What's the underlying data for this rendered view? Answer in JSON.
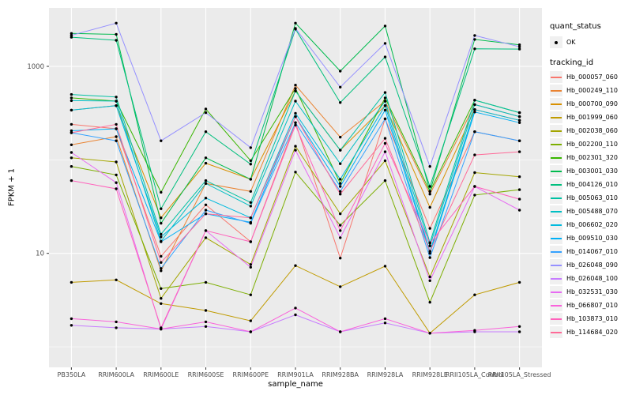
{
  "chart_data": {
    "type": "line",
    "title": "",
    "xlabel": "sample_name",
    "ylabel": "FPKM + 1",
    "y_scale": "log10",
    "y_ticks": [
      10,
      1000
    ],
    "y_minor_ticks": [
      1,
      100
    ],
    "ylim": [
      0.6,
      4200
    ],
    "grid": "on",
    "panel_bg": "#EBEBEB",
    "grid_color": "#FFFFFF",
    "point_color": "#000000",
    "tick_label_color": "#4D4D4D",
    "legend_position": "right",
    "x_categories": [
      "PB350LA",
      "RRIM600LA",
      "RRIM600LE",
      "RRIM600SE",
      "RRIM600PE",
      "RRIM901LA",
      "RRIM928BA",
      "RRIM928LA",
      "RRIM928LE",
      "RRII105LA_Control",
      "RRII105LA_Stressed"
    ],
    "legend": {
      "quant_status": {
        "title": "quant_status",
        "items": [
          {
            "label": "OK",
            "symbol": "point"
          }
        ]
      },
      "tracking_id": {
        "title": "tracking_id"
      }
    },
    "series": [
      {
        "name": "Hb_000057_060",
        "color": "#F8766D",
        "values": [
          240,
          215,
          9.3,
          33,
          13.3,
          250,
          8.9,
          275,
          18.5,
          200,
          160
        ]
      },
      {
        "name": "Hb_000249_110",
        "color": "#EA8331",
        "values": [
          145,
          177,
          6.5,
          56,
          46,
          630,
          175,
          425,
          43,
          390,
          290
        ]
      },
      {
        "name": "Hb_000700_090",
        "color": "#D89000",
        "values": [
          340,
          380,
          24,
          92,
          62,
          545,
          127,
          380,
          31,
          345,
          265
        ]
      },
      {
        "name": "Hb_001999_060",
        "color": "#C09B00",
        "values": [
          4.9,
          5.2,
          2.9,
          2.45,
          1.9,
          7.4,
          4.4,
          7.3,
          1.4,
          3.6,
          4.9
        ]
      },
      {
        "name": "Hb_002038_060",
        "color": "#A3A500",
        "values": [
          105,
          95,
          3.3,
          14.7,
          7.6,
          140,
          26.5,
          98,
          5.6,
          73,
          66
        ]
      },
      {
        "name": "Hb_002200_110",
        "color": "#7CAE00",
        "values": [
          85,
          69,
          4.2,
          4.9,
          3.6,
          74,
          20,
          60,
          3.0,
          42,
          48
        ]
      },
      {
        "name": "Hb_002301_320",
        "color": "#39B600",
        "values": [
          460,
          425,
          45,
          350,
          98,
          580,
          56,
          460,
          46,
          435,
          320
        ]
      },
      {
        "name": "Hb_003001_030",
        "color": "#00BB4E",
        "values": [
          2250,
          2200,
          21,
          105,
          62,
          2900,
          890,
          2700,
          46,
          1940,
          1700
        ]
      },
      {
        "name": "Hb_004126_010",
        "color": "#00BF7D",
        "values": [
          2050,
          1900,
          30,
          200,
          90,
          2500,
          410,
          1260,
          52,
          1540,
          1530
        ]
      },
      {
        "name": "Hb_005063_010",
        "color": "#00C1A3",
        "values": [
          500,
          470,
          16,
          60,
          35,
          545,
          127,
          525,
          13,
          435,
          320
        ]
      },
      {
        "name": "Hb_005488_070",
        "color": "#00BFC4",
        "values": [
          430,
          425,
          13.5,
          56,
          32,
          425,
          91,
          425,
          12,
          390,
          290
        ]
      },
      {
        "name": "Hb_006602_020",
        "color": "#00BADE",
        "values": [
          340,
          380,
          15,
          39,
          24,
          315,
          62,
          380,
          10.5,
          345,
          265
        ]
      },
      {
        "name": "Hb_009510_030",
        "color": "#00B0F6",
        "values": [
          205,
          215,
          13.3,
          26.5,
          21.5,
          290,
          52,
          340,
          10,
          325,
          250
        ]
      },
      {
        "name": "Hb_014067_010",
        "color": "#35A2FF",
        "values": [
          195,
          160,
          6.9,
          29,
          21,
          250,
          46,
          275,
          9,
          200,
          160
        ]
      },
      {
        "name": "Hb_026048_090",
        "color": "#9590FF",
        "values": [
          2150,
          2900,
          160,
          320,
          135,
          2550,
          600,
          1760,
          85,
          2140,
          1620
        ]
      },
      {
        "name": "Hb_026048_100",
        "color": "#C77CFF",
        "values": [
          1.7,
          1.6,
          1.55,
          1.65,
          1.45,
          2.2,
          1.45,
          1.8,
          1.4,
          1.45,
          1.45
        ]
      },
      {
        "name": "Hb_032531_030",
        "color": "#E76BF3",
        "values": [
          120,
          57,
          1.55,
          17.5,
          7.1,
          127,
          14.7,
          122,
          5.1,
          52,
          29
        ]
      },
      {
        "name": "Hb_066807_010",
        "color": "#FA62DB",
        "values": [
          2.0,
          1.85,
          1.55,
          1.85,
          1.45,
          2.6,
          1.45,
          2.0,
          1.4,
          1.5,
          1.65
        ]
      },
      {
        "name": "Hb_103873_010",
        "color": "#FF62BC",
        "values": [
          60,
          49,
          1.6,
          17.5,
          13.3,
          235,
          17.5,
          150,
          12.8,
          52,
          38
        ]
      },
      {
        "name": "Hb_114684_020",
        "color": "#FF6A98",
        "values": [
          195,
          240,
          8.0,
          26.5,
          24,
          290,
          43,
          170,
          10.5,
          113,
          122
        ]
      }
    ]
  }
}
